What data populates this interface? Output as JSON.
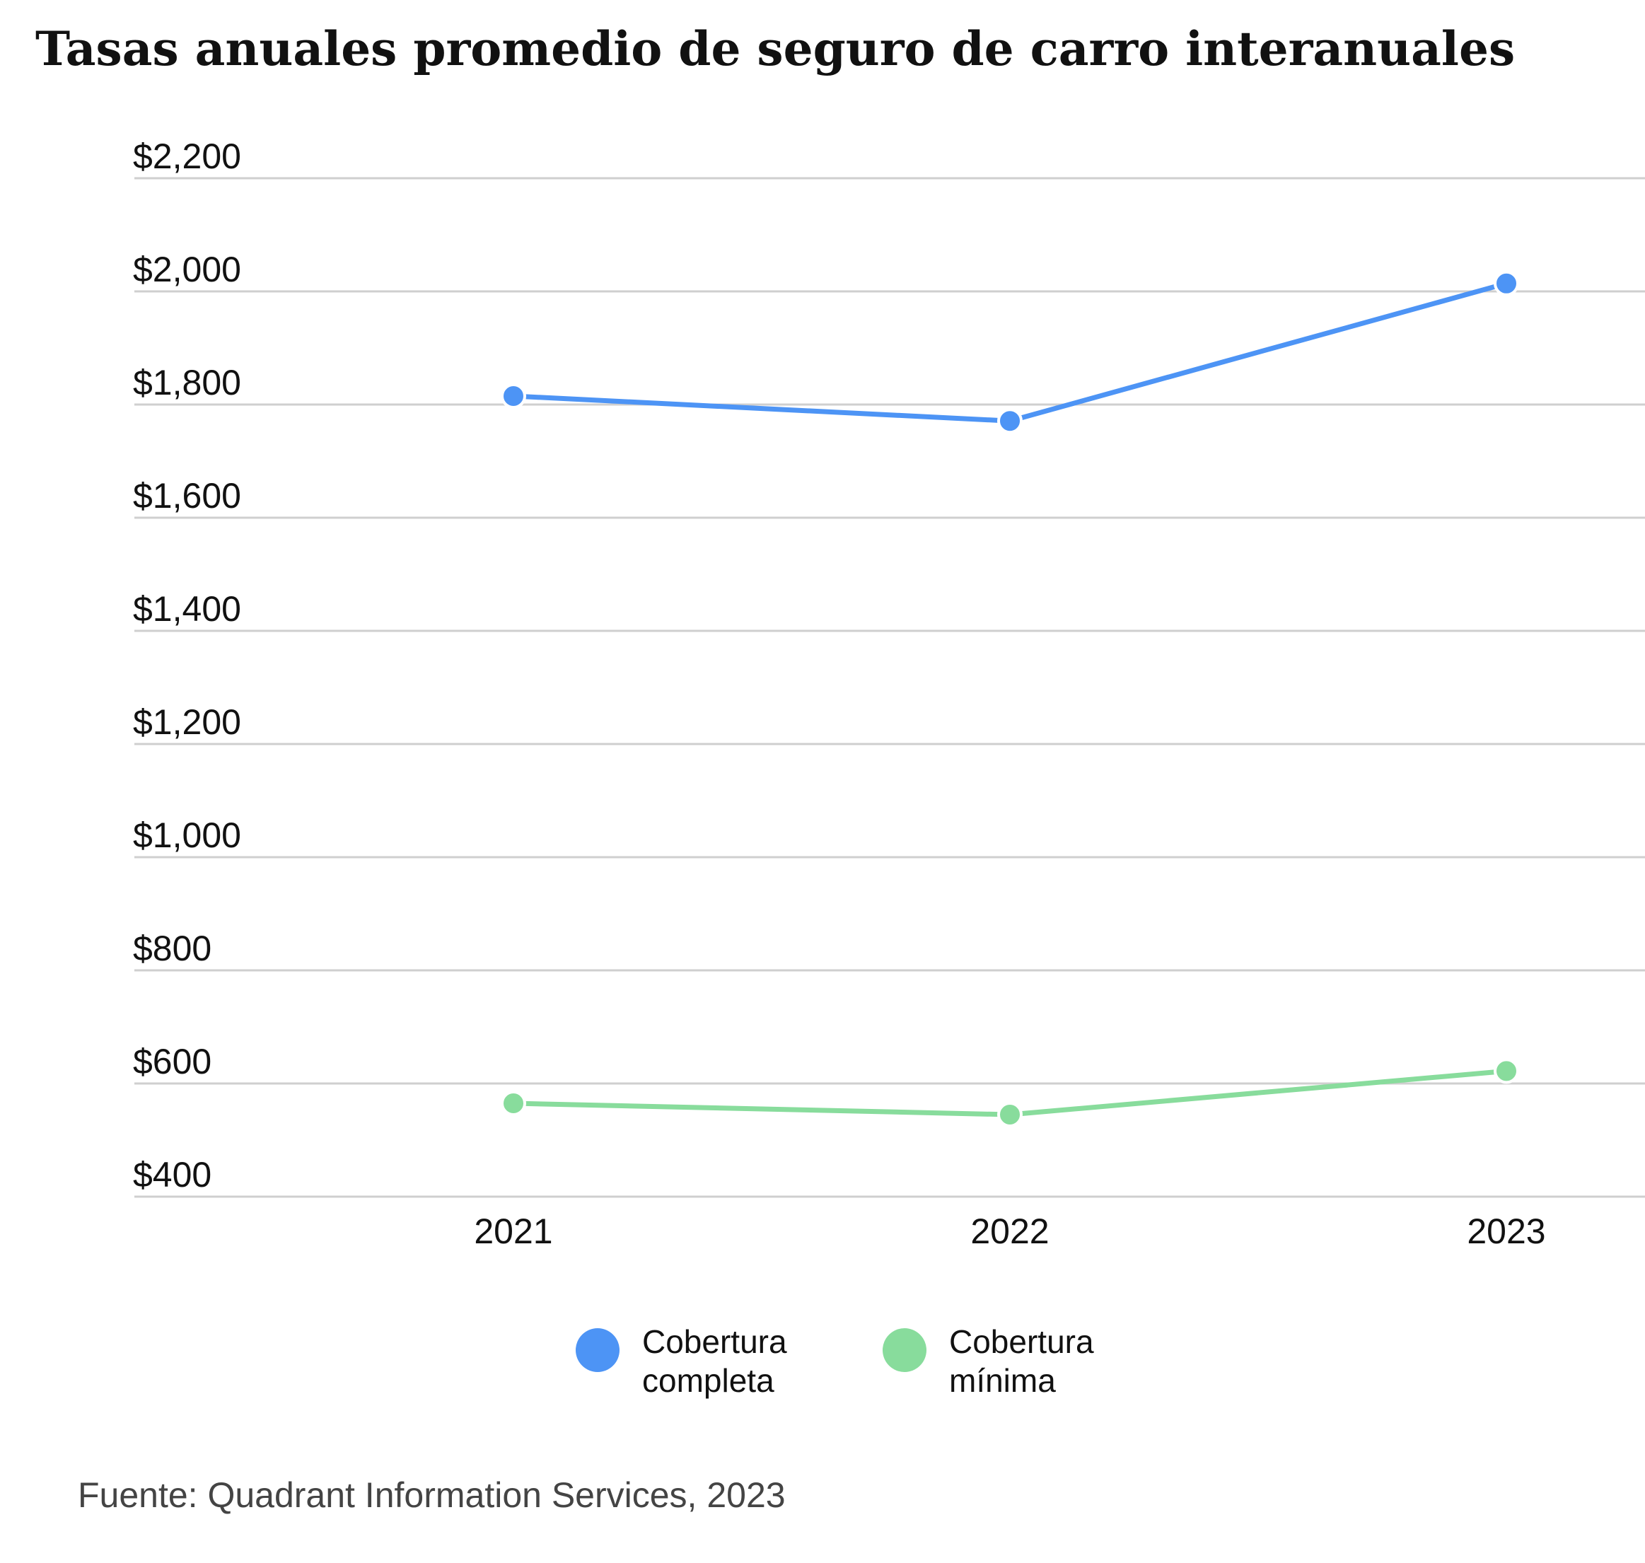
{
  "title": "Tasas anuales promedio de seguro de carro interanuales",
  "source": "Fuente: Quadrant Information Services, 2023",
  "chart_data": {
    "type": "line",
    "title": "Tasas anuales promedio de seguro de carro interanuales",
    "x": [
      "2021",
      "2022",
      "2023"
    ],
    "series": [
      {
        "name": "Cobertura completa",
        "color": "#4d94f5",
        "values": [
          1815,
          1771,
          2014
        ]
      },
      {
        "name": "Cobertura mínima",
        "color": "#88dc9c",
        "values": [
          565,
          545,
          622
        ]
      }
    ],
    "yticks": [
      400,
      600,
      800,
      1000,
      1200,
      1400,
      1600,
      1800,
      2000,
      2200
    ],
    "ytick_labels": [
      "$400",
      "$600",
      "$800",
      "$1,000",
      "$1,200",
      "$1,400",
      "$1,600",
      "$1,800",
      "$2,000",
      "$2,200"
    ],
    "ylim": [
      400,
      2200
    ],
    "xlabel": "",
    "ylabel": "",
    "grid": true,
    "legend_position": "bottom"
  },
  "legend": [
    {
      "label_line1": "Cobertura",
      "label_line2": "completa",
      "color": "#4d94f5"
    },
    {
      "label_line1": "Cobertura",
      "label_line2": "mínima",
      "color": "#88dc9c"
    }
  ]
}
